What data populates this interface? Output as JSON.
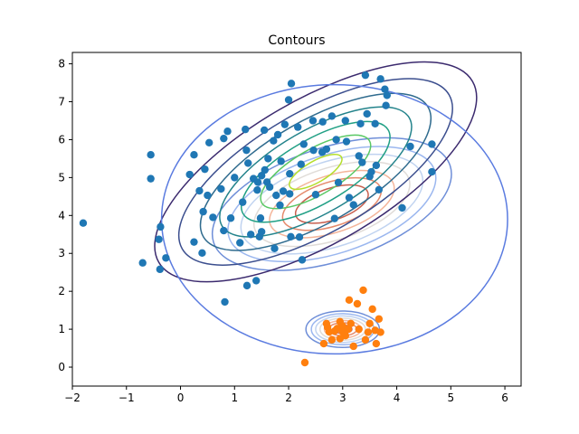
{
  "chart_data": {
    "type": "scatter",
    "title": "Contours",
    "xlabel": "",
    "ylabel": "",
    "xlim": [
      -2,
      6.3
    ],
    "ylim": [
      -0.5,
      8.3
    ],
    "grid": false,
    "x_ticks": [
      -2,
      -1,
      0,
      1,
      2,
      3,
      4,
      5,
      6
    ],
    "y_ticks": [
      0,
      1,
      2,
      3,
      4,
      5,
      6,
      7,
      8
    ],
    "x_tick_labels": [
      "−2",
      "−1",
      "0",
      "1",
      "2",
      "3",
      "4",
      "5",
      "6"
    ],
    "y_tick_labels": [
      "0",
      "1",
      "2",
      "3",
      "4",
      "5",
      "6",
      "7",
      "8"
    ],
    "series": [
      {
        "color": "#1f77b4",
        "points": [
          [
            -1.8,
            3.8
          ],
          [
            -0.7,
            2.75
          ],
          [
            -0.55,
            5.6
          ],
          [
            -0.55,
            4.97
          ],
          [
            -0.4,
            3.37
          ],
          [
            -0.37,
            3.7
          ],
          [
            -0.38,
            2.58
          ],
          [
            -0.27,
            2.88
          ],
          [
            0.17,
            5.08
          ],
          [
            0.25,
            5.6
          ],
          [
            0.25,
            3.3
          ],
          [
            0.35,
            4.65
          ],
          [
            0.4,
            3.01
          ],
          [
            0.42,
            4.1
          ],
          [
            0.45,
            5.22
          ],
          [
            0.5,
            4.53
          ],
          [
            0.53,
            5.92
          ],
          [
            0.6,
            3.95
          ],
          [
            0.75,
            4.7
          ],
          [
            0.8,
            6.03
          ],
          [
            0.8,
            3.6
          ],
          [
            0.82,
            1.72
          ],
          [
            0.87,
            6.22
          ],
          [
            0.93,
            3.93
          ],
          [
            1.0,
            5.0
          ],
          [
            1.1,
            3.28
          ],
          [
            1.15,
            4.35
          ],
          [
            1.2,
            6.27
          ],
          [
            1.22,
            5.72
          ],
          [
            1.25,
            5.38
          ],
          [
            1.23,
            2.15
          ],
          [
            1.3,
            3.5
          ],
          [
            1.35,
            4.97
          ],
          [
            1.4,
            2.28
          ],
          [
            1.42,
            4.67
          ],
          [
            1.43,
            4.88
          ],
          [
            1.46,
            3.44
          ],
          [
            1.48,
            3.93
          ],
          [
            1.5,
            5.05
          ],
          [
            1.5,
            3.57
          ],
          [
            1.55,
            6.25
          ],
          [
            1.56,
            5.2
          ],
          [
            1.6,
            4.88
          ],
          [
            1.62,
            5.5
          ],
          [
            1.65,
            4.75
          ],
          [
            1.72,
            5.97
          ],
          [
            1.74,
            3.13
          ],
          [
            1.77,
            4.53
          ],
          [
            1.8,
            6.13
          ],
          [
            1.84,
            4.27
          ],
          [
            1.86,
            5.43
          ],
          [
            1.9,
            4.64
          ],
          [
            1.93,
            6.4
          ],
          [
            2.0,
            7.05
          ],
          [
            2.02,
            5.1
          ],
          [
            2.02,
            4.57
          ],
          [
            2.04,
            3.44
          ],
          [
            2.05,
            7.48
          ],
          [
            2.17,
            6.33
          ],
          [
            2.2,
            3.43
          ],
          [
            2.25,
            2.83
          ],
          [
            2.23,
            5.35
          ],
          [
            2.28,
            5.88
          ],
          [
            2.45,
            6.5
          ],
          [
            2.46,
            5.72
          ],
          [
            2.5,
            4.55
          ],
          [
            2.62,
            5.67
          ],
          [
            2.63,
            6.47
          ],
          [
            2.7,
            5.75
          ],
          [
            2.8,
            6.62
          ],
          [
            2.88,
            6.0
          ],
          [
            2.85,
            3.92
          ],
          [
            2.92,
            4.87
          ],
          [
            3.05,
            6.5
          ],
          [
            3.07,
            5.95
          ],
          [
            3.12,
            4.47
          ],
          [
            3.2,
            4.28
          ],
          [
            3.3,
            5.57
          ],
          [
            3.33,
            6.42
          ],
          [
            3.36,
            5.4
          ],
          [
            3.42,
            7.7
          ],
          [
            3.45,
            6.68
          ],
          [
            3.5,
            5.03
          ],
          [
            3.53,
            5.15
          ],
          [
            3.6,
            6.42
          ],
          [
            3.62,
            5.32
          ],
          [
            3.67,
            4.68
          ],
          [
            3.7,
            7.6
          ],
          [
            3.78,
            7.33
          ],
          [
            3.8,
            6.9
          ],
          [
            3.82,
            7.17
          ],
          [
            4.1,
            4.2
          ],
          [
            4.25,
            5.82
          ],
          [
            4.65,
            5.88
          ],
          [
            4.65,
            5.15
          ]
        ]
      },
      {
        "color": "#ff7f0e",
        "points": [
          [
            2.3,
            0.12
          ],
          [
            2.65,
            0.62
          ],
          [
            2.7,
            1.15
          ],
          [
            2.75,
            0.93
          ],
          [
            2.8,
            0.72
          ],
          [
            2.85,
            0.95
          ],
          [
            2.9,
            1.02
          ],
          [
            2.95,
            1.2
          ],
          [
            3.0,
            1.08
          ],
          [
            3.05,
            0.83
          ],
          [
            3.1,
            1.0
          ],
          [
            3.12,
            1.77
          ],
          [
            3.2,
            0.55
          ],
          [
            3.27,
            1.67
          ],
          [
            3.3,
            1.0
          ],
          [
            3.38,
            2.03
          ],
          [
            3.42,
            0.72
          ],
          [
            3.47,
            0.92
          ],
          [
            3.5,
            1.15
          ],
          [
            3.55,
            1.53
          ],
          [
            3.6,
            0.97
          ],
          [
            3.62,
            0.62
          ],
          [
            3.67,
            1.27
          ],
          [
            3.7,
            0.92
          ],
          [
            2.72,
            1.05
          ],
          [
            3.0,
            0.93
          ],
          [
            3.15,
            1.15
          ],
          [
            2.95,
            0.75
          ]
        ]
      }
    ],
    "contour_sets": [
      {
        "center": [
          2.8,
          4.3
        ],
        "angle_deg": 18,
        "levels": [
          {
            "rx": 2.3,
            "ry": 1.5,
            "color": "#6e8ed8"
          },
          {
            "rx": 2.0,
            "ry": 1.3,
            "color": "#9bb7ef"
          },
          {
            "rx": 1.75,
            "ry": 1.12,
            "color": "#c0d3f0"
          },
          {
            "rx": 1.5,
            "ry": 0.95,
            "color": "#e0dcd8"
          },
          {
            "rx": 1.2,
            "ry": 0.75,
            "color": "#f4b59a"
          },
          {
            "rx": 0.95,
            "ry": 0.58,
            "color": "#e58a6c"
          },
          {
            "rx": 0.7,
            "ry": 0.42,
            "color": "#c8604f"
          }
        ]
      },
      {
        "center": [
          2.5,
          5.15
        ],
        "angle_deg": 30,
        "levels": [
          {
            "rx": 3.35,
            "ry": 1.9,
            "color": "#3b2a6e"
          },
          {
            "rx": 2.85,
            "ry": 1.6,
            "color": "#3b4e8e"
          },
          {
            "rx": 2.4,
            "ry": 1.35,
            "color": "#2f6b8e"
          },
          {
            "rx": 2.0,
            "ry": 1.1,
            "color": "#23838b"
          },
          {
            "rx": 1.55,
            "ry": 0.85,
            "color": "#21a085"
          },
          {
            "rx": 1.15,
            "ry": 0.6,
            "color": "#5ac864"
          },
          {
            "rx": 0.55,
            "ry": 0.28,
            "color": "#b5de2b"
          }
        ]
      },
      {
        "center": [
          2.85,
          3.9
        ],
        "angle_deg": 0,
        "levels": [
          {
            "rx": 3.2,
            "ry": 3.55,
            "color": "#5a7be0"
          }
        ]
      },
      {
        "center": [
          3.0,
          1.0
        ],
        "angle_deg": 0,
        "levels": [
          {
            "rx": 0.68,
            "ry": 0.48,
            "color": "#6e8ed8"
          },
          {
            "rx": 0.58,
            "ry": 0.41,
            "color": "#9bb7ef"
          },
          {
            "rx": 0.5,
            "ry": 0.35,
            "color": "#c0d3f0"
          },
          {
            "rx": 0.42,
            "ry": 0.29,
            "color": "#e0dcd8"
          },
          {
            "rx": 0.34,
            "ry": 0.23,
            "color": "#f4b59a"
          },
          {
            "rx": 0.26,
            "ry": 0.17,
            "color": "#e58a6c"
          },
          {
            "rx": 0.17,
            "ry": 0.11,
            "color": "#c8604f"
          }
        ]
      }
    ]
  }
}
